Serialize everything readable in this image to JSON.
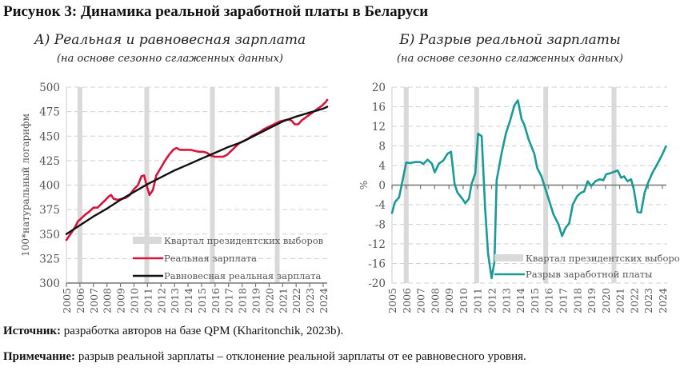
{
  "figure_title": "Рисунок 3: Динамика реальной заработной платы в Беларуси",
  "source": {
    "label": "Источник:",
    "text": " разработка авторов на базе QPM (Kharitonchik, 2023b)."
  },
  "note": {
    "label": "Примечание:",
    "text": " разрыв реальной зарплаты – отклонение реальной зарплаты от ее равновесного уровня."
  },
  "colors": {
    "real_wage": "#d7143c",
    "equilibrium_wage": "#111111",
    "gap": "#1a9a96",
    "election_band": "#d9d9d9",
    "grid": "#d0d0d0",
    "axis": "#777777"
  },
  "chart_data": [
    {
      "id": "left",
      "type": "line",
      "title": "А) Реальная и равновесная зарплата",
      "subtitle": "(на основе сезонно сглаженных данных)",
      "xlabel": "",
      "ylabel": "100*натуральный логарифм",
      "ylim": [
        300,
        500
      ],
      "yticks": [
        300,
        325,
        350,
        375,
        400,
        425,
        450,
        475,
        500
      ],
      "xlim": [
        2005,
        2024.3
      ],
      "xticks": [
        "2005",
        "2006",
        "2007",
        "2008",
        "2009",
        "2010",
        "2011",
        "2012",
        "2013",
        "2014",
        "2015",
        "2016",
        "2017",
        "2018",
        "2019",
        "2020",
        "2021",
        "2022",
        "2023",
        "2024"
      ],
      "grid": true,
      "legend_position": "bottom-right",
      "election_quarters": [
        2006.0,
        2010.95,
        2015.8,
        2020.6
      ],
      "legend": [
        {
          "kind": "band",
          "label": "Квартал президентских выборов"
        },
        {
          "kind": "line",
          "label": "Реальная зарплата",
          "series": "real"
        },
        {
          "kind": "line",
          "label": "Равновесная реальная зарплата",
          "series": "equilibrium"
        }
      ],
      "series": [
        {
          "name": "Реальная зарплата",
          "key": "real",
          "points": [
            [
              2005.0,
              344
            ],
            [
              2005.3,
              350
            ],
            [
              2005.6,
              356
            ],
            [
              2005.85,
              363
            ],
            [
              2006.1,
              366
            ],
            [
              2006.4,
              370
            ],
            [
              2006.7,
              373
            ],
            [
              2007.0,
              377
            ],
            [
              2007.3,
              377
            ],
            [
              2007.6,
              381
            ],
            [
              2007.9,
              385
            ],
            [
              2008.1,
              388
            ],
            [
              2008.3,
              390
            ],
            [
              2008.5,
              386
            ],
            [
              2008.8,
              385
            ],
            [
              2009.1,
              386
            ],
            [
              2009.4,
              387
            ],
            [
              2009.7,
              390
            ],
            [
              2010.0,
              396
            ],
            [
              2010.3,
              400
            ],
            [
              2010.55,
              409
            ],
            [
              2010.75,
              410
            ],
            [
              2010.95,
              399
            ],
            [
              2011.15,
              390
            ],
            [
              2011.4,
              395
            ],
            [
              2011.65,
              410
            ],
            [
              2012.0,
              418
            ],
            [
              2012.3,
              425
            ],
            [
              2012.6,
              431
            ],
            [
              2012.9,
              436
            ],
            [
              2013.15,
              438
            ],
            [
              2013.4,
              436
            ],
            [
              2013.8,
              436
            ],
            [
              2014.2,
              436
            ],
            [
              2014.5,
              435
            ],
            [
              2014.8,
              434
            ],
            [
              2015.1,
              434
            ],
            [
              2015.4,
              433
            ],
            [
              2015.7,
              430
            ],
            [
              2016.0,
              429
            ],
            [
              2016.3,
              429
            ],
            [
              2016.6,
              429
            ],
            [
              2016.9,
              431
            ],
            [
              2017.2,
              435
            ],
            [
              2017.5,
              439
            ],
            [
              2017.8,
              443
            ],
            [
              2018.1,
              445
            ],
            [
              2018.4,
              447
            ],
            [
              2018.7,
              450
            ],
            [
              2019.0,
              452
            ],
            [
              2019.3,
              454
            ],
            [
              2019.6,
              457
            ],
            [
              2019.9,
              459
            ],
            [
              2020.2,
              461
            ],
            [
              2020.5,
              463
            ],
            [
              2020.8,
              465
            ],
            [
              2021.1,
              466
            ],
            [
              2021.4,
              467
            ],
            [
              2021.65,
              466
            ],
            [
              2021.9,
              462
            ],
            [
              2022.15,
              462
            ],
            [
              2022.4,
              466
            ],
            [
              2022.7,
              469
            ],
            [
              2023.0,
              472
            ],
            [
              2023.3,
              475
            ],
            [
              2023.6,
              478
            ],
            [
              2023.9,
              481
            ],
            [
              2024.2,
              485
            ],
            [
              2024.3,
              487
            ]
          ]
        },
        {
          "name": "Равновесная реальная зарплата",
          "key": "equilibrium",
          "points": [
            [
              2005.0,
              350
            ],
            [
              2006.0,
              359
            ],
            [
              2007.0,
              368
            ],
            [
              2008.0,
              376
            ],
            [
              2009.0,
              385
            ],
            [
              2010.0,
              393
            ],
            [
              2011.0,
              401
            ],
            [
              2012.0,
              408
            ],
            [
              2013.0,
              415
            ],
            [
              2014.0,
              421
            ],
            [
              2015.0,
              427
            ],
            [
              2016.0,
              433
            ],
            [
              2017.0,
              439
            ],
            [
              2018.0,
              444
            ],
            [
              2019.0,
              451
            ],
            [
              2020.0,
              458
            ],
            [
              2021.0,
              465
            ],
            [
              2022.0,
              470
            ],
            [
              2023.0,
              474
            ],
            [
              2024.0,
              478
            ],
            [
              2024.3,
              480
            ]
          ]
        }
      ]
    },
    {
      "id": "right",
      "type": "line",
      "title": "Б) Разрыв реальной зарплаты",
      "subtitle": "(на основе сезонно сглаженных данных)",
      "xlabel": "",
      "ylabel": "%",
      "ylim": [
        -20,
        20
      ],
      "yticks": [
        -20,
        -16,
        -12,
        -8,
        -4,
        0,
        4,
        8,
        12,
        16,
        20
      ],
      "xlim": [
        2005,
        2024.3
      ],
      "xticks": [
        "2005",
        "2006",
        "2007",
        "2008",
        "2009",
        "2010",
        "2011",
        "2012",
        "2013",
        "2014",
        "2015",
        "2016",
        "2017",
        "2018",
        "2019",
        "2020",
        "2021",
        "2022",
        "2023",
        "2024"
      ],
      "grid": true,
      "legend_position": "bottom-right",
      "election_quarters": [
        2006.0,
        2010.95,
        2015.8,
        2020.6
      ],
      "legend": [
        {
          "kind": "band",
          "label": "Квартал президентских выборов"
        },
        {
          "kind": "line",
          "label": "Разрыв заработной платы",
          "series": "gap"
        }
      ],
      "series": [
        {
          "name": "Разрыв заработной платы",
          "key": "gap",
          "points": [
            [
              2005.0,
              -5.7
            ],
            [
              2005.2,
              -3.5
            ],
            [
              2005.5,
              -2.5
            ],
            [
              2005.75,
              1.0
            ],
            [
              2006.0,
              4.6
            ],
            [
              2006.3,
              4.5
            ],
            [
              2006.6,
              4.7
            ],
            [
              2007.0,
              4.7
            ],
            [
              2007.2,
              4.3
            ],
            [
              2007.5,
              5.2
            ],
            [
              2007.8,
              4.4
            ],
            [
              2008.0,
              2.6
            ],
            [
              2008.3,
              4.4
            ],
            [
              2008.6,
              5.0
            ],
            [
              2008.9,
              6.4
            ],
            [
              2009.15,
              6.8
            ],
            [
              2009.4,
              0.2
            ],
            [
              2009.6,
              -1.5
            ],
            [
              2010.0,
              -3.0
            ],
            [
              2010.15,
              -3.7
            ],
            [
              2010.4,
              -2.8
            ],
            [
              2010.6,
              0.3
            ],
            [
              2010.85,
              2.4
            ],
            [
              2011.05,
              10.5
            ],
            [
              2011.3,
              10.0
            ],
            [
              2011.55,
              -5.0
            ],
            [
              2011.75,
              -14.0
            ],
            [
              2012.0,
              -19.0
            ],
            [
              2012.2,
              -15.6
            ],
            [
              2012.35,
              1.0
            ],
            [
              2012.7,
              6.5
            ],
            [
              2013.0,
              10.5
            ],
            [
              2013.3,
              13.2
            ],
            [
              2013.6,
              16.3
            ],
            [
              2013.85,
              17.3
            ],
            [
              2014.1,
              13.5
            ],
            [
              2014.3,
              12.3
            ],
            [
              2014.6,
              9.3
            ],
            [
              2015.0,
              6.4
            ],
            [
              2015.2,
              3.5
            ],
            [
              2015.5,
              1.8
            ],
            [
              2016.0,
              -2.8
            ],
            [
              2016.35,
              -6.0
            ],
            [
              2016.7,
              -8.0
            ],
            [
              2016.95,
              -10.4
            ],
            [
              2017.2,
              -8.7
            ],
            [
              2017.45,
              -7.8
            ],
            [
              2017.7,
              -4.0
            ],
            [
              2018.0,
              -2.3
            ],
            [
              2018.25,
              -1.6
            ],
            [
              2018.5,
              -1.3
            ],
            [
              2018.75,
              0.8
            ],
            [
              2019.0,
              -0.2
            ],
            [
              2019.3,
              0.8
            ],
            [
              2019.6,
              1.2
            ],
            [
              2019.85,
              1.0
            ],
            [
              2020.05,
              2.2
            ],
            [
              2020.3,
              2.4
            ],
            [
              2020.6,
              2.7
            ],
            [
              2020.85,
              3.0
            ],
            [
              2021.1,
              1.5
            ],
            [
              2021.3,
              1.8
            ],
            [
              2021.55,
              0.8
            ],
            [
              2021.8,
              1.2
            ],
            [
              2022.0,
              -1.0
            ],
            [
              2022.25,
              -5.5
            ],
            [
              2022.5,
              -5.6
            ],
            [
              2022.75,
              -1.5
            ],
            [
              2023.0,
              0.5
            ],
            [
              2023.3,
              2.5
            ],
            [
              2023.7,
              4.6
            ],
            [
              2024.0,
              6.3
            ],
            [
              2024.25,
              7.9
            ]
          ]
        }
      ]
    }
  ]
}
